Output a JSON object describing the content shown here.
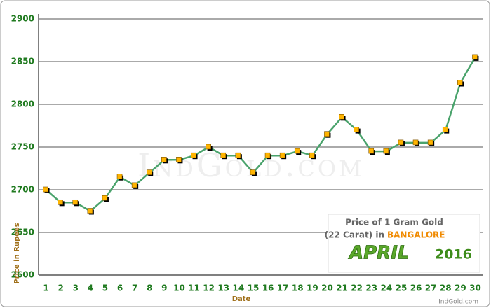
{
  "chart_data": {
    "type": "line",
    "y_label": "Price in Rupees",
    "x_label": "Date",
    "watermark": "IndGold.com",
    "inset": {
      "line1": "Price of 1 Gram Gold",
      "line2": "(22 Carat) in",
      "city": "BANGALORE",
      "month": "APRIL",
      "year": "2016"
    },
    "credit": "IndGold.com",
    "categories": [
      "1",
      "2",
      "3",
      "4",
      "5",
      "6",
      "7",
      "8",
      "9",
      "10",
      "11",
      "12",
      "13",
      "14",
      "15",
      "16",
      "17",
      "18",
      "19",
      "20",
      "21",
      "22",
      "23",
      "24",
      "25",
      "26",
      "27",
      "28",
      "29",
      "30"
    ],
    "values": [
      2700,
      2685,
      2685,
      2675,
      2690,
      2715,
      2705,
      2720,
      2735,
      2735,
      2740,
      2750,
      2740,
      2740,
      2720,
      2740,
      2740,
      2745,
      2740,
      2765,
      2785,
      2770,
      2745,
      2745,
      2755,
      2755,
      2755,
      2770,
      2825,
      2855
    ],
    "color": "#4aa36c",
    "marker_color": "#ffb400",
    "ylim": [
      2600,
      2900
    ],
    "yticks": [
      2600,
      2650,
      2700,
      2750,
      2800,
      2850,
      2900
    ],
    "grid": true
  }
}
